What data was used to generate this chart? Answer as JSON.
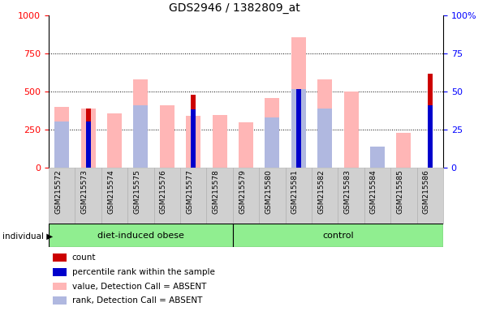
{
  "title": "GDS2946 / 1382809_at",
  "samples": [
    "GSM215572",
    "GSM215573",
    "GSM215574",
    "GSM215575",
    "GSM215576",
    "GSM215577",
    "GSM215578",
    "GSM215579",
    "GSM215580",
    "GSM215581",
    "GSM215582",
    "GSM215583",
    "GSM215584",
    "GSM215585",
    "GSM215586"
  ],
  "group_obese_indices": [
    0,
    1,
    2,
    3,
    4,
    5,
    6
  ],
  "group_control_indices": [
    7,
    8,
    9,
    10,
    11,
    12,
    13,
    14
  ],
  "value_absent": [
    400,
    390,
    360,
    580,
    410,
    340,
    350,
    300,
    460,
    860,
    580,
    500,
    0,
    230,
    0
  ],
  "rank_absent": [
    305,
    0,
    0,
    410,
    0,
    0,
    0,
    0,
    330,
    515,
    390,
    0,
    140,
    0,
    0
  ],
  "count": [
    0,
    390,
    0,
    0,
    0,
    480,
    0,
    0,
    0,
    0,
    0,
    0,
    0,
    0,
    620
  ],
  "percentile_rank": [
    0,
    305,
    0,
    0,
    0,
    385,
    0,
    0,
    0,
    515,
    0,
    0,
    0,
    0,
    410
  ],
  "ylim": [
    0,
    1000
  ],
  "y2lim": [
    0,
    100
  ],
  "yticks": [
    0,
    250,
    500,
    750,
    1000
  ],
  "y2ticks": [
    0,
    25,
    50,
    75,
    100
  ],
  "color_count": "#cc0000",
  "color_percentile": "#0000cc",
  "color_value_absent": "#ffb6b6",
  "color_rank_absent": "#b0b8e0",
  "color_group_bg": "#90EE90",
  "color_tick_bg": "#d0d0d0",
  "legend_labels": [
    "count",
    "percentile rank within the sample",
    "value, Detection Call = ABSENT",
    "rank, Detection Call = ABSENT"
  ]
}
